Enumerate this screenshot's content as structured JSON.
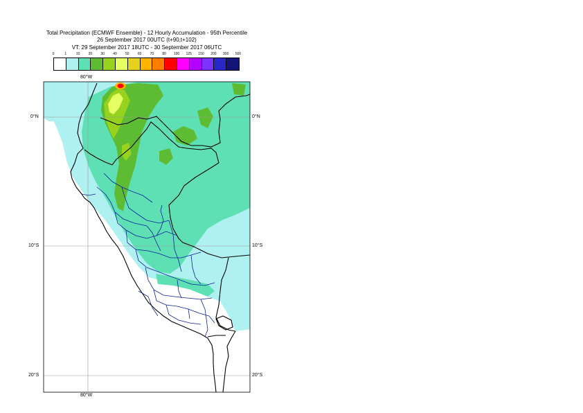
{
  "title": {
    "line1": "Total Precipitation (ECMWF Ensemble) - 12 Hourly Accumulation - 95th Percentile",
    "line2": "26 September 2017 00UTC (t+90,t+102)",
    "line3": "VT: 29 September 2017 18UTC - 30 September 2017 06UTC"
  },
  "legend": {
    "thresholds": [
      "0",
      "1",
      "10",
      "20",
      "30",
      "40",
      "50",
      "60",
      "70",
      "80",
      "100",
      "125",
      "150",
      "200",
      "300",
      "500"
    ],
    "colors": [
      "#ffffff",
      "#aff0f0",
      "#5fe0b4",
      "#5ebc32",
      "#96d21e",
      "#e6ff64",
      "#e6d21e",
      "#ffb400",
      "#ff7d00",
      "#ff0000",
      "#ff00ff",
      "#b400ff",
      "#7d32ff",
      "#2828c8",
      "#141478"
    ]
  },
  "map": {
    "lon_top": "80°W",
    "lon_bottom": "80°W",
    "lat_left": [
      "0°N",
      "10°S",
      "20°S"
    ],
    "lat_right": [
      "0°N",
      "10°S",
      "20°S"
    ]
  }
}
